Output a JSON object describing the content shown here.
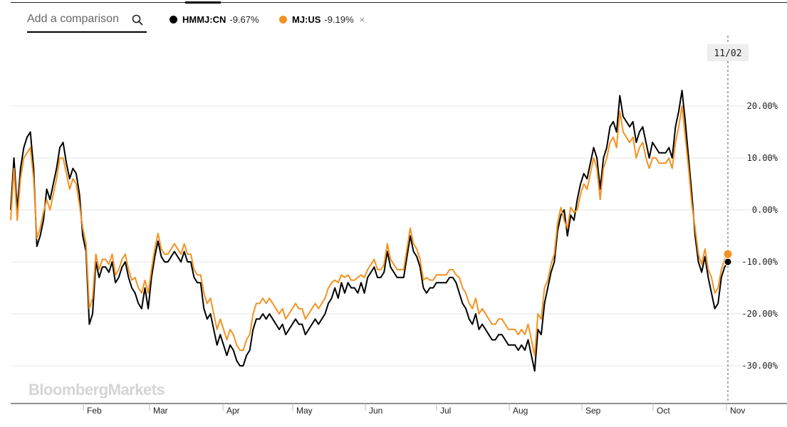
{
  "search": {
    "placeholder": "Add a comparison"
  },
  "legend": [
    {
      "symbol": "HMMJ:CN",
      "change": "-9.67%",
      "color": "#000000"
    },
    {
      "symbol": "MJ:US",
      "change": "-9.19%",
      "color": "#f39221",
      "close": "×"
    }
  ],
  "crosshair": {
    "date_label": "11/02"
  },
  "watermark": "BloombergMarkets",
  "colors": {
    "grid": "#e6e6e6",
    "axis": "#222222",
    "crosshair": "#555555"
  },
  "chart_data": {
    "type": "line",
    "x_axis": {
      "labels": [
        "Feb",
        "Mar",
        "Apr",
        "May",
        "Jun",
        "Jul",
        "Aug",
        "Sep",
        "Oct",
        "Nov"
      ],
      "range": [
        "Jan",
        "Nov 02"
      ]
    },
    "y_axis": {
      "ticks": [
        20,
        10,
        0,
        -10,
        -20,
        -30
      ],
      "tick_labels": [
        "20.00%",
        "10.00%",
        "0.00%",
        "-10.00%",
        "-20.00%",
        "-30.00%"
      ],
      "range": [
        -37,
        32
      ],
      "unit": "%",
      "position": "right"
    },
    "grid": true,
    "series": [
      {
        "name": "HMMJ:CN",
        "color": "#000000",
        "points": [
          [
            "Jan 01",
            0
          ],
          [
            "Jan 02",
            10
          ],
          [
            "Jan 03",
            0
          ],
          [
            "Jan 04",
            8
          ],
          [
            "Jan 07",
            12
          ],
          [
            "Jan 08",
            14
          ],
          [
            "Jan 09",
            15
          ],
          [
            "Jan 11",
            8
          ],
          [
            "Jan 14",
            -7
          ],
          [
            "Jan 16",
            -5
          ],
          [
            "Jan 18",
            -2
          ],
          [
            "Jan 21",
            4
          ],
          [
            "Jan 22",
            2
          ],
          [
            "Jan 24",
            5
          ],
          [
            "Jan 27",
            8
          ],
          [
            "Jan 30",
            12
          ],
          [
            "Jan 31",
            13
          ],
          [
            "Feb 01",
            9
          ],
          [
            "Feb 02",
            6
          ],
          [
            "Feb 04",
            8
          ],
          [
            "Feb 05",
            7
          ],
          [
            "Feb 08",
            3
          ],
          [
            "Feb 09",
            -5
          ],
          [
            "Feb 11",
            -8
          ],
          [
            "Feb 13",
            -22
          ],
          [
            "Feb 17",
            -20
          ],
          [
            "Feb 19",
            -10
          ],
          [
            "Feb 21",
            -13
          ],
          [
            "Feb 23",
            -11
          ],
          [
            "Feb 25",
            -11
          ],
          [
            "Feb 28",
            -12
          ],
          [
            "Mar 01",
            -10
          ],
          [
            "Mar 04",
            -14
          ],
          [
            "Mar 06",
            -13
          ],
          [
            "Mar 09",
            -11
          ],
          [
            "Mar 11",
            -10
          ],
          [
            "Mar 14",
            -13
          ],
          [
            "Mar 17",
            -15
          ],
          [
            "Mar 19",
            -16
          ],
          [
            "Mar 22",
            -18
          ],
          [
            "Mar 24",
            -19
          ],
          [
            "Mar 25",
            -15
          ],
          [
            "Mar 27",
            -19
          ],
          [
            "Mar 30",
            -13
          ],
          [
            "Apr 01",
            -9
          ],
          [
            "Apr 04",
            -6
          ],
          [
            "Apr 06",
            -9
          ],
          [
            "Apr 08",
            -10
          ],
          [
            "Apr 10",
            -10
          ],
          [
            "Apr 12",
            -9
          ],
          [
            "Apr 15",
            -8
          ],
          [
            "Apr 17",
            -9
          ],
          [
            "Apr 19",
            -10
          ],
          [
            "Apr 21",
            -8
          ],
          [
            "Apr 23",
            -10
          ],
          [
            "Apr 25",
            -10
          ],
          [
            "Apr 27",
            -13
          ],
          [
            "May 01",
            -14
          ],
          [
            "May 03",
            -14
          ],
          [
            "May 05",
            -19
          ],
          [
            "May 07",
            -21
          ],
          [
            "May 09",
            -20
          ],
          [
            "May 11",
            -23
          ],
          [
            "May 13",
            -26
          ],
          [
            "May 15",
            -24
          ],
          [
            "May 17",
            -26
          ],
          [
            "May 19",
            -28
          ],
          [
            "May 20",
            -26
          ],
          [
            "May 22",
            -27
          ],
          [
            "May 25",
            -29
          ],
          [
            "May 27",
            -30
          ],
          [
            "May 29",
            -30
          ],
          [
            "Jun 01",
            -28
          ],
          [
            "Jun 02",
            -27
          ],
          [
            "Jun 03",
            -23
          ],
          [
            "Jun 05",
            -21
          ],
          [
            "Jun 08",
            -21
          ],
          [
            "Jun 10",
            -20
          ],
          [
            "Jun 12",
            -21
          ],
          [
            "Jun 15",
            -20
          ],
          [
            "Jun 17",
            -21
          ],
          [
            "Jun 19",
            -22
          ],
          [
            "Jun 21",
            -23
          ],
          [
            "Jun 23",
            -22
          ],
          [
            "Jun 25",
            -24
          ],
          [
            "Jun 27",
            -23
          ],
          [
            "Jun 30",
            -22
          ],
          [
            "Jul 02",
            -21
          ],
          [
            "Jul 04",
            -22
          ],
          [
            "Jul 06",
            -22
          ],
          [
            "Jul 08",
            -24
          ],
          [
            "Jul 10",
            -23
          ],
          [
            "Jul 12",
            -22
          ],
          [
            "Jul 14",
            -21
          ],
          [
            "Jul 16",
            -22
          ],
          [
            "Jul 18",
            -21
          ],
          [
            "Jul 20",
            -20
          ],
          [
            "Jul 22",
            -18
          ],
          [
            "Jul 24",
            -17
          ],
          [
            "Jul 26",
            -15
          ],
          [
            "Jul 28",
            -17
          ],
          [
            "Aug 01",
            -14
          ],
          [
            "Aug 03",
            -16
          ],
          [
            "Aug 05",
            -14
          ],
          [
            "Aug 07",
            -15
          ],
          [
            "Aug 09",
            -15
          ],
          [
            "Aug 11",
            -16
          ],
          [
            "Aug 14",
            -14
          ],
          [
            "Aug 16",
            -16
          ],
          [
            "Aug 18",
            -13
          ],
          [
            "Aug 20",
            -12
          ],
          [
            "Aug 22",
            -11
          ],
          [
            "Aug 24",
            -13
          ],
          [
            "Aug 26",
            -13
          ],
          [
            "Aug 28",
            -12
          ],
          [
            "Aug 30",
            -8
          ],
          [
            "Sep 01",
            -11
          ],
          [
            "Sep 03",
            -12
          ],
          [
            "Sep 05",
            -13
          ],
          [
            "Sep 07",
            -13
          ],
          [
            "Sep 09",
            -13
          ],
          [
            "Sep 11",
            -9
          ],
          [
            "Sep 13",
            -5
          ],
          [
            "Sep 15",
            -8
          ],
          [
            "Sep 17",
            -9
          ],
          [
            "Sep 19",
            -11
          ],
          [
            "Sep 21",
            -15
          ],
          [
            "Sep 24",
            -16
          ],
          [
            "Sep 26",
            -15
          ],
          [
            "Sep 28",
            -15
          ],
          [
            "Oct 01",
            -14
          ],
          [
            "Oct 03",
            -14
          ],
          [
            "Oct 05",
            -14
          ],
          [
            "Oct 07",
            -14
          ],
          [
            "Oct 09",
            -13
          ],
          [
            "Oct 11",
            -13
          ],
          [
            "Oct 13",
            -14
          ],
          [
            "Oct 15",
            -16
          ],
          [
            "Oct 17",
            -18
          ],
          [
            "Oct 19",
            -19
          ],
          [
            "Oct 21",
            -21
          ],
          [
            "Oct 24",
            -22
          ],
          [
            "Oct 26",
            -20
          ],
          [
            "Oct 28",
            -23
          ],
          [
            "Oct 30",
            -22
          ],
          [
            "Nov 01",
            -23
          ],
          [
            "Nov 03",
            -24
          ],
          [
            "Nov 05",
            -25
          ],
          [
            "Nov 07",
            -25
          ],
          [
            "Nov 09",
            -24
          ],
          [
            "Nov 11",
            -24
          ],
          [
            "Nov 13",
            -25
          ],
          [
            "Nov 15",
            -26
          ],
          [
            "Nov 17",
            -26
          ],
          [
            "Nov 19",
            -26
          ],
          [
            "Nov 21",
            -27
          ],
          [
            "Nov 23",
            -26
          ],
          [
            "Nov 25",
            -27
          ],
          [
            "Nov 27",
            -25
          ],
          [
            "Nov 29",
            -28
          ],
          [
            "Dec 01",
            -31
          ],
          [
            "Dec 03",
            -23
          ],
          [
            "Dec 05",
            -24
          ],
          [
            "Dec 07",
            -18
          ],
          [
            "Dec 09",
            -15
          ],
          [
            "Dec 11",
            -12
          ],
          [
            "Dec 13",
            -10
          ],
          [
            "Dec 15",
            -4
          ],
          [
            "Dec 17",
            -1
          ],
          [
            "Dec 19",
            0
          ],
          [
            "Dec 21",
            -5
          ],
          [
            "Dec 23",
            -1
          ],
          [
            "Dec 25",
            -2
          ],
          [
            "Dec 27",
            2
          ],
          [
            "Dec 29",
            5
          ],
          [
            "Dec 31",
            7
          ],
          [
            "Jan 02b",
            6
          ],
          [
            "Jan 04b",
            9
          ],
          [
            "Jan 06b",
            12
          ],
          [
            "Jan 08b",
            10
          ],
          [
            "Jan 10b",
            4
          ],
          [
            "Jan 12b",
            10
          ],
          [
            "Jan 14b",
            12
          ],
          [
            "Jan 16b",
            16
          ],
          [
            "Jan 18b",
            17
          ],
          [
            "Jan 20b",
            15
          ],
          [
            "Jan 22b",
            22
          ],
          [
            "Jan 24b",
            18
          ],
          [
            "Jan 26b",
            17
          ],
          [
            "Jan 28b",
            16
          ],
          [
            "Jan 30b",
            17
          ],
          [
            "Feb 01b",
            13
          ],
          [
            "Feb 03b",
            15
          ],
          [
            "Feb 05b",
            16
          ],
          [
            "Feb 07b",
            13
          ],
          [
            "Feb 09b",
            10
          ],
          [
            "Feb 11b",
            13
          ],
          [
            "Feb 13b",
            12
          ],
          [
            "Feb 15b",
            11
          ],
          [
            "Feb 17b",
            11
          ],
          [
            "Feb 19b",
            11
          ],
          [
            "Feb 21b",
            12
          ],
          [
            "Feb 23b",
            10
          ],
          [
            "Feb 25b",
            16
          ],
          [
            "Feb 27b",
            19
          ],
          [
            "Mar 01b",
            23
          ],
          [
            "Mar 03b",
            17
          ],
          [
            "Mar 05b",
            10
          ],
          [
            "Mar 07b",
            3
          ],
          [
            "Mar 09b",
            -5
          ],
          [
            "Mar 11b",
            -10
          ],
          [
            "Mar 13b",
            -12
          ],
          [
            "Mar 15b",
            -9
          ],
          [
            "Mar 17b",
            -13
          ],
          [
            "Mar 19b",
            -16
          ],
          [
            "Mar 21b",
            -19
          ],
          [
            "Mar 23b",
            -18
          ],
          [
            "Mar 25b",
            -13
          ],
          [
            "Mar 27b",
            -11
          ],
          [
            "Mar 29b",
            -10
          ]
        ]
      },
      {
        "name": "MJ:US",
        "color": "#f39221",
        "points": []
      }
    ]
  }
}
